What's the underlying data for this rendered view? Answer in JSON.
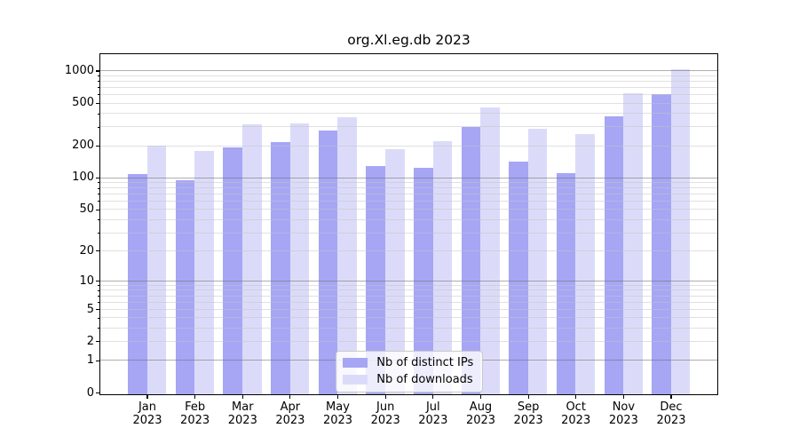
{
  "chart_data": {
    "type": "bar",
    "title": "org.Xl.eg.db 2023",
    "categories": [
      "Jan",
      "Feb",
      "Mar",
      "Apr",
      "May",
      "Jun",
      "Jul",
      "Aug",
      "Sep",
      "Oct",
      "Nov",
      "Dec"
    ],
    "x_tick_year": "2023",
    "series": [
      {
        "name": "Nb of distinct IPs",
        "color": "#a6a6f5",
        "values": [
          109,
          96,
          195,
          218,
          278,
          130,
          125,
          299,
          142,
          112,
          378,
          610
        ]
      },
      {
        "name": "Nb of downloads",
        "color": "#dbdbf9",
        "values": [
          203,
          180,
          318,
          328,
          369,
          185,
          223,
          455,
          289,
          258,
          619,
          1040
        ]
      }
    ],
    "y_axis": {
      "scale": "log-like (position proportional to log10(1+v))",
      "ylim": [
        0,
        1420
      ],
      "tick_labels": [
        1000,
        500,
        200,
        100,
        50,
        20,
        10,
        5,
        2,
        1,
        0
      ],
      "grid_major": [
        1,
        10,
        100,
        1000
      ],
      "grid_minor": [
        2,
        3,
        4,
        5,
        6,
        7,
        8,
        9,
        20,
        30,
        40,
        50,
        60,
        70,
        80,
        90,
        200,
        300,
        400,
        500,
        600,
        700,
        800,
        900
      ],
      "grid": "on"
    },
    "legend": {
      "position": "lower center"
    },
    "colors": {
      "bar_distinct_ips": "#a6a6f5",
      "bar_downloads": "#dbdbf9",
      "grid_major": "#b0b0b0",
      "grid_minor": "#e2e2e2",
      "spine": "#000000",
      "background": "#ffffff"
    }
  }
}
